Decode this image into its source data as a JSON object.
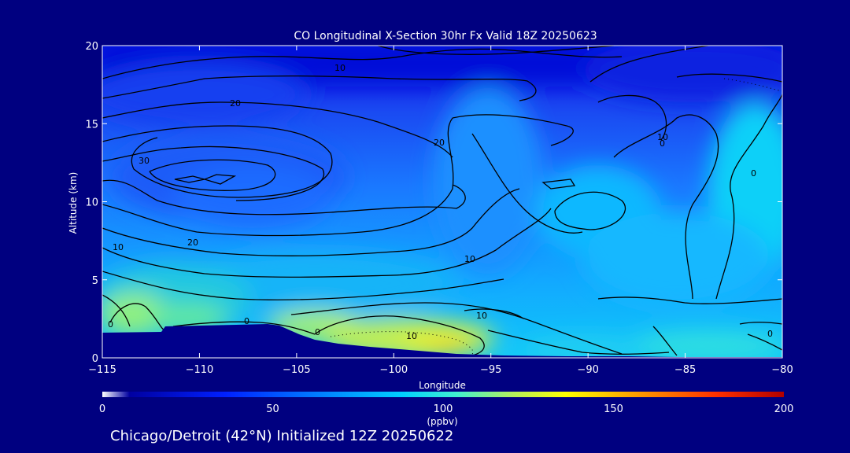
{
  "chart_data": {
    "type": "heatmap",
    "title": "CO Longitudinal X-Section 30hr  Fx Valid 18Z 20250623",
    "xlabel": "Longitude",
    "ylabel": "Altitude (km)",
    "xlim": [
      -115,
      -80
    ],
    "ylim": [
      0,
      20
    ],
    "x_ticks": [
      "−115",
      "−110",
      "−105",
      "−100",
      "−95",
      "−90",
      "−85",
      "−80"
    ],
    "y_ticks": [
      "0",
      "5",
      "10",
      "15",
      "20"
    ],
    "colorbar": {
      "label": "(ppbv)",
      "range": [
        0,
        200
      ],
      "ticks": [
        "0",
        "50",
        "100",
        "150",
        "200"
      ],
      "colors": [
        "#ffffff",
        "#0000c0",
        "#0040ff",
        "#00a0ff",
        "#00e0ff",
        "#60f0c0",
        "#c0f060",
        "#ffff00",
        "#ffa000",
        "#ff4000",
        "#c00000"
      ]
    },
    "contour_labels": [
      "10",
      "20",
      "20",
      "30",
      "10",
      "20",
      "10",
      "0",
      "0",
      "0",
      "0",
      "10",
      "10",
      "0",
      "10",
      "0"
    ],
    "grid": false,
    "subtitle": "Chicago/Detroit (42°N) Initialized 12Z 20250622"
  },
  "colors": {
    "background": "#000080",
    "terrain": "#00008c"
  }
}
